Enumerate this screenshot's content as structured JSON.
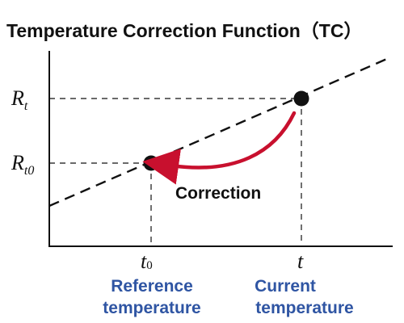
{
  "title": "Temperature Correction Function（TC）",
  "y_labels": {
    "rt_base": "R",
    "rt_sub": "t",
    "rt0_base": "R",
    "rt0_sub": "t0"
  },
  "x_labels": {
    "t0_base": "t",
    "t0_sub": "0",
    "t": "t"
  },
  "captions": {
    "reference": [
      "Reference",
      "temperature"
    ],
    "current": [
      "Current",
      "temperature"
    ]
  },
  "correction_label": "Correction",
  "colors": {
    "axis": "#111111",
    "arrow": "#c8102e",
    "caption": "#2f55a3",
    "point": "#111111"
  }
}
